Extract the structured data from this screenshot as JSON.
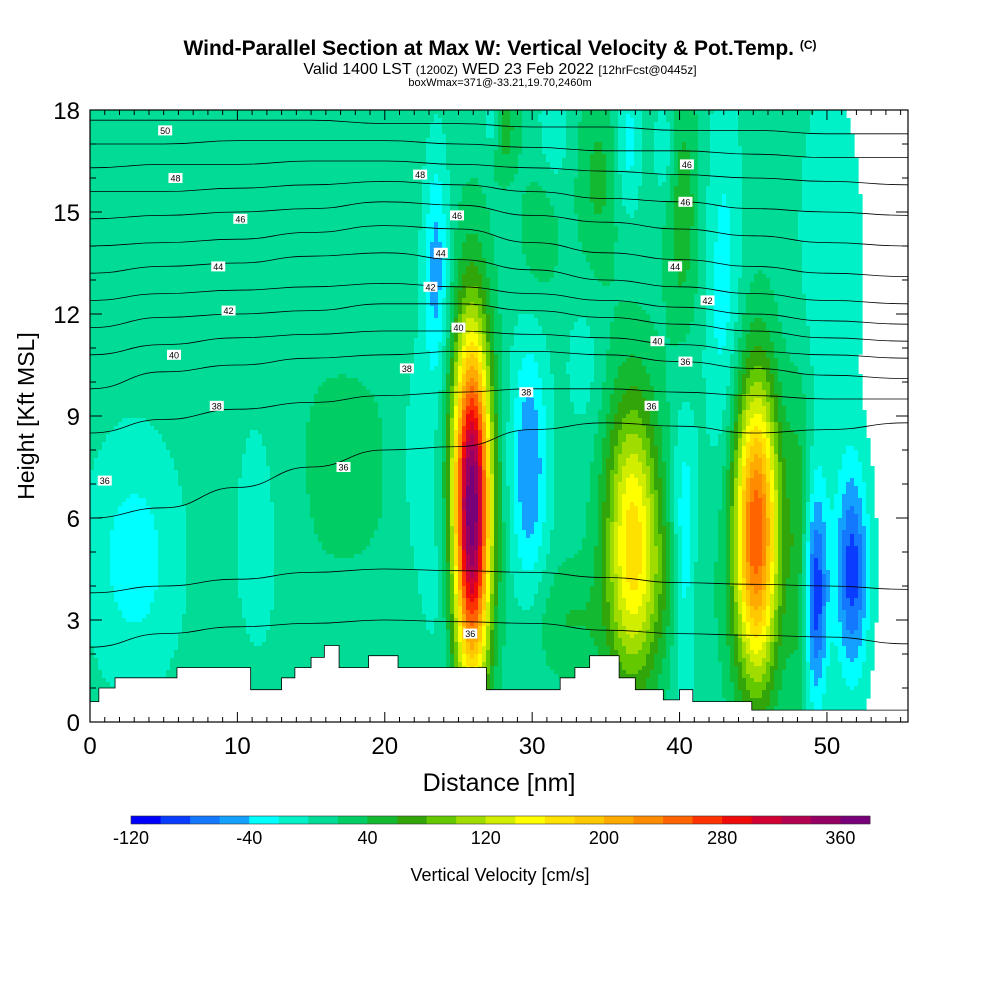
{
  "header": {
    "title_main": "Wind-Parallel Section at Max W: Vertical Velocity & Pot.Temp.",
    "title_mark": "(C)",
    "valid_prefix": "Valid 1400 LST",
    "valid_zulu": "(1200Z)",
    "valid_date": "WED 23 Feb 2022",
    "valid_fcst": "[12hrFcst@0445z]",
    "box_info": "boxWmax=371@-33.21,19.70,2460m"
  },
  "chart_data": {
    "type": "heatmap",
    "xlabel": "Distance [nm]",
    "ylabel": "Height [Kft MSL]",
    "xlim": [
      0,
      55.5
    ],
    "ylim": [
      0,
      18
    ],
    "x_ticks": [
      0,
      10,
      20,
      30,
      40,
      50
    ],
    "y_ticks": [
      0,
      3,
      6,
      9,
      12,
      15,
      18
    ],
    "background_w": 10,
    "updrafts": [
      {
        "x": 25.9,
        "y": 6.3,
        "sx": 0.9,
        "sy": 3.6,
        "w": 371
      },
      {
        "x": 36.8,
        "y": 5.3,
        "sx": 1.3,
        "sy": 3.0,
        "w": 160
      },
      {
        "x": 45.2,
        "y": 5.6,
        "sx": 1.1,
        "sy": 3.1,
        "w": 250
      },
      {
        "x": 32.5,
        "y": 3.0,
        "sx": 1.8,
        "sy": 1.2,
        "w": 30
      },
      {
        "x": 48.2,
        "y": 5.0,
        "sx": 0.6,
        "sy": 3.5,
        "w": 50
      },
      {
        "x": 40.2,
        "y": 15.0,
        "sx": 0.8,
        "sy": 2.5,
        "w": 45
      },
      {
        "x": 28.0,
        "y": 17.5,
        "sx": 0.7,
        "sy": 1.0,
        "w": 45
      },
      {
        "x": 34.5,
        "y": 16.0,
        "sx": 1.0,
        "sy": 2.0,
        "w": 35
      },
      {
        "x": 39.5,
        "y": 4.0,
        "sx": 1.6,
        "sy": 1.7,
        "w": 25
      },
      {
        "x": 17.0,
        "y": 7.5,
        "sx": 4.0,
        "sy": 3.0,
        "w": 15
      },
      {
        "x": 30.5,
        "y": 14.3,
        "sx": 1.0,
        "sy": 1.4,
        "w": 25
      }
    ],
    "downdrafts": [
      {
        "x": 29.8,
        "y": 7.5,
        "sx": 0.9,
        "sy": 2.6,
        "w": -70
      },
      {
        "x": 40.3,
        "y": 4.8,
        "sx": 0.6,
        "sy": 2.8,
        "w": -60
      },
      {
        "x": 49.2,
        "y": 3.8,
        "sx": 0.6,
        "sy": 2.3,
        "w": -110
      },
      {
        "x": 51.7,
        "y": 4.4,
        "sx": 0.8,
        "sy": 2.2,
        "w": -100
      },
      {
        "x": 23.5,
        "y": 13.3,
        "sx": 0.6,
        "sy": 2.4,
        "w": -60
      },
      {
        "x": 22.3,
        "y": 7.8,
        "sx": 1.0,
        "sy": 2.6,
        "w": -25
      },
      {
        "x": 24.0,
        "y": 4.0,
        "sx": 1.0,
        "sy": 2.0,
        "w": -20
      },
      {
        "x": 11.5,
        "y": 6.0,
        "sx": 1.6,
        "sy": 3.5,
        "w": -20
      },
      {
        "x": 3.0,
        "y": 4.8,
        "sx": 2.2,
        "sy": 2.5,
        "w": -40
      },
      {
        "x": 43.0,
        "y": 12.5,
        "sx": 0.9,
        "sy": 4.0,
        "w": -40
      },
      {
        "x": 50.2,
        "y": 13.5,
        "sx": 1.5,
        "sy": 3.5,
        "w": -30
      },
      {
        "x": 36.5,
        "y": 17.0,
        "sx": 0.6,
        "sy": 1.5,
        "w": -40
      },
      {
        "x": 31.5,
        "y": 17.5,
        "sx": 0.7,
        "sy": 1.2,
        "w": -30
      },
      {
        "x": 39.0,
        "y": 16.8,
        "sx": 0.5,
        "sy": 1.0,
        "w": -35
      },
      {
        "x": 27.3,
        "y": 17.8,
        "sx": 0.4,
        "sy": 0.8,
        "w": -50
      },
      {
        "x": 33.5,
        "y": 10.5,
        "sx": 0.9,
        "sy": 1.5,
        "w": -20
      }
    ],
    "terrain": {
      "x": [
        0,
        0.6,
        0.6,
        1.7,
        1.7,
        5.9,
        5.9,
        10.9,
        10.9,
        13.0,
        13.0,
        13.9,
        13.9,
        15.0,
        15.0,
        15.9,
        15.9,
        16.9,
        16.9,
        18.9,
        18.9,
        20.9,
        20.9,
        22.9,
        22.9,
        26.9,
        26.9,
        31.9,
        31.9,
        32.9,
        32.9,
        33.9,
        33.9,
        35.9,
        35.9,
        37.0,
        37.0,
        38.9,
        38.9,
        40.0,
        40.0,
        40.9,
        40.9,
        41.9,
        41.9,
        44.9,
        44.9,
        45.9,
        45.9,
        55.5
      ],
      "y": [
        0.6,
        0.6,
        1.0,
        1.0,
        1.3,
        1.3,
        1.6,
        1.6,
        0.95,
        0.95,
        1.3,
        1.3,
        1.6,
        1.6,
        1.9,
        1.9,
        2.25,
        2.25,
        1.6,
        1.6,
        1.95,
        1.95,
        1.6,
        1.6,
        1.6,
        1.6,
        0.95,
        0.95,
        1.3,
        1.3,
        1.6,
        1.6,
        1.95,
        1.95,
        1.3,
        1.3,
        0.95,
        0.95,
        0.65,
        0.65,
        0.95,
        0.95,
        0.6,
        0.6,
        0.6,
        0.6,
        0.35,
        0.35,
        0.35,
        0.35
      ]
    },
    "theta_lines": [
      {
        "y": [
          2.2,
          2.6,
          2.8,
          2.9,
          3.0,
          2.95,
          2.9,
          2.7,
          2.6,
          2.55,
          2.5,
          2.3
        ]
      },
      {
        "y": [
          3.8,
          4.0,
          4.2,
          4.4,
          4.5,
          4.45,
          4.4,
          4.25,
          4.1,
          4.05,
          4.0,
          3.9
        ]
      },
      {
        "y": [
          6.0,
          6.3,
          6.9,
          7.5,
          8.0,
          8.1,
          8.6,
          8.8,
          8.7,
          8.5,
          8.6,
          8.8
        ]
      },
      {
        "y": [
          8.5,
          8.9,
          9.2,
          9.4,
          9.6,
          9.7,
          9.8,
          9.8,
          9.7,
          9.6,
          9.5,
          9.5
        ]
      },
      {
        "y": [
          9.8,
          10.3,
          10.5,
          10.7,
          10.8,
          10.9,
          10.9,
          10.8,
          10.6,
          10.4,
          10.2,
          10.1
        ]
      },
      {
        "y": [
          10.8,
          11.1,
          11.3,
          11.4,
          11.5,
          11.5,
          11.4,
          11.3,
          11.1,
          10.9,
          10.8,
          10.7
        ]
      },
      {
        "y": [
          11.6,
          11.9,
          12.0,
          12.1,
          12.3,
          12.3,
          12.1,
          11.9,
          11.7,
          11.5,
          11.3,
          11.2
        ]
      },
      {
        "y": [
          12.4,
          12.6,
          12.7,
          12.8,
          12.9,
          12.8,
          12.6,
          12.4,
          12.2,
          12.0,
          11.8,
          11.7
        ]
      },
      {
        "y": [
          13.2,
          13.4,
          13.5,
          13.7,
          13.8,
          13.6,
          13.3,
          13.0,
          12.8,
          12.6,
          12.4,
          12.3
        ]
      },
      {
        "y": [
          14.0,
          14.1,
          14.2,
          14.4,
          14.6,
          14.5,
          14.1,
          13.8,
          13.6,
          13.4,
          13.2,
          13.1
        ]
      },
      {
        "y": [
          14.8,
          14.9,
          15.0,
          15.1,
          15.3,
          15.2,
          14.9,
          14.7,
          14.5,
          14.3,
          14.1,
          14.0
        ]
      },
      {
        "y": [
          15.6,
          15.6,
          15.7,
          15.8,
          15.9,
          15.8,
          15.6,
          15.4,
          15.3,
          15.1,
          15.0,
          14.9
        ]
      },
      {
        "y": [
          16.3,
          16.4,
          16.4,
          16.5,
          16.5,
          16.4,
          16.3,
          16.2,
          16.1,
          16.0,
          15.9,
          15.8
        ]
      },
      {
        "y": [
          17.0,
          17.0,
          17.1,
          17.1,
          17.1,
          17.0,
          16.9,
          16.8,
          16.8,
          16.7,
          16.6,
          16.6
        ]
      },
      {
        "y": [
          17.7,
          17.7,
          17.7,
          17.7,
          17.6,
          17.6,
          17.5,
          17.5,
          17.4,
          17.4,
          17.3,
          17.3
        ]
      }
    ],
    "theta_x": [
      0,
      5,
      10,
      15,
      20,
      25,
      30,
      35,
      40,
      45,
      50,
      55.5
    ],
    "theta_labels": [
      {
        "x": 1.0,
        "y": 7.1,
        "text": "36"
      },
      {
        "x": 8.6,
        "y": 9.3,
        "text": "38"
      },
      {
        "x": 17.2,
        "y": 7.5,
        "text": "36"
      },
      {
        "x": 21.5,
        "y": 10.4,
        "text": "38"
      },
      {
        "x": 25.8,
        "y": 2.6,
        "text": "36"
      },
      {
        "x": 29.6,
        "y": 9.7,
        "text": "38"
      },
      {
        "x": 38.1,
        "y": 9.3,
        "text": "36"
      },
      {
        "x": 40.4,
        "y": 10.6,
        "text": "36"
      },
      {
        "x": 5.7,
        "y": 10.8,
        "text": "40"
      },
      {
        "x": 25.0,
        "y": 11.6,
        "text": "40"
      },
      {
        "x": 38.5,
        "y": 11.2,
        "text": "40"
      },
      {
        "x": 9.4,
        "y": 12.1,
        "text": "42"
      },
      {
        "x": 23.1,
        "y": 12.8,
        "text": "42"
      },
      {
        "x": 41.9,
        "y": 12.4,
        "text": "42"
      },
      {
        "x": 8.7,
        "y": 13.4,
        "text": "44"
      },
      {
        "x": 23.8,
        "y": 13.8,
        "text": "44"
      },
      {
        "x": 39.7,
        "y": 13.4,
        "text": "44"
      },
      {
        "x": 10.2,
        "y": 14.8,
        "text": "46"
      },
      {
        "x": 24.9,
        "y": 14.9,
        "text": "46"
      },
      {
        "x": 40.4,
        "y": 15.3,
        "text": "46"
      },
      {
        "x": 5.8,
        "y": 16.0,
        "text": "48"
      },
      {
        "x": 22.4,
        "y": 16.1,
        "text": "48"
      },
      {
        "x": 40.5,
        "y": 16.4,
        "text": "46"
      },
      {
        "x": 5.1,
        "y": 17.4,
        "text": "50"
      }
    ]
  },
  "colorbar": {
    "label": "Vertical Velocity [cm/s]",
    "min": -120,
    "step": 20,
    "colors": [
      "#0000ff",
      "#0a3cff",
      "#1478ff",
      "#14a0ff",
      "#00ffff",
      "#00f0c8",
      "#00dc96",
      "#00cd64",
      "#14b932",
      "#32a50a",
      "#64c800",
      "#a0dc00",
      "#d2ee00",
      "#ffff00",
      "#ffe100",
      "#ffc800",
      "#ffaa00",
      "#ff8c00",
      "#ff6400",
      "#ff3200",
      "#f00a0a",
      "#d20032",
      "#b40050",
      "#960064",
      "#780078"
    ],
    "tick_labels": [
      "-120",
      "-40",
      "40",
      "120",
      "200",
      "280",
      "360"
    ],
    "tick_values": [
      -120,
      -40,
      40,
      120,
      200,
      280,
      360
    ]
  }
}
